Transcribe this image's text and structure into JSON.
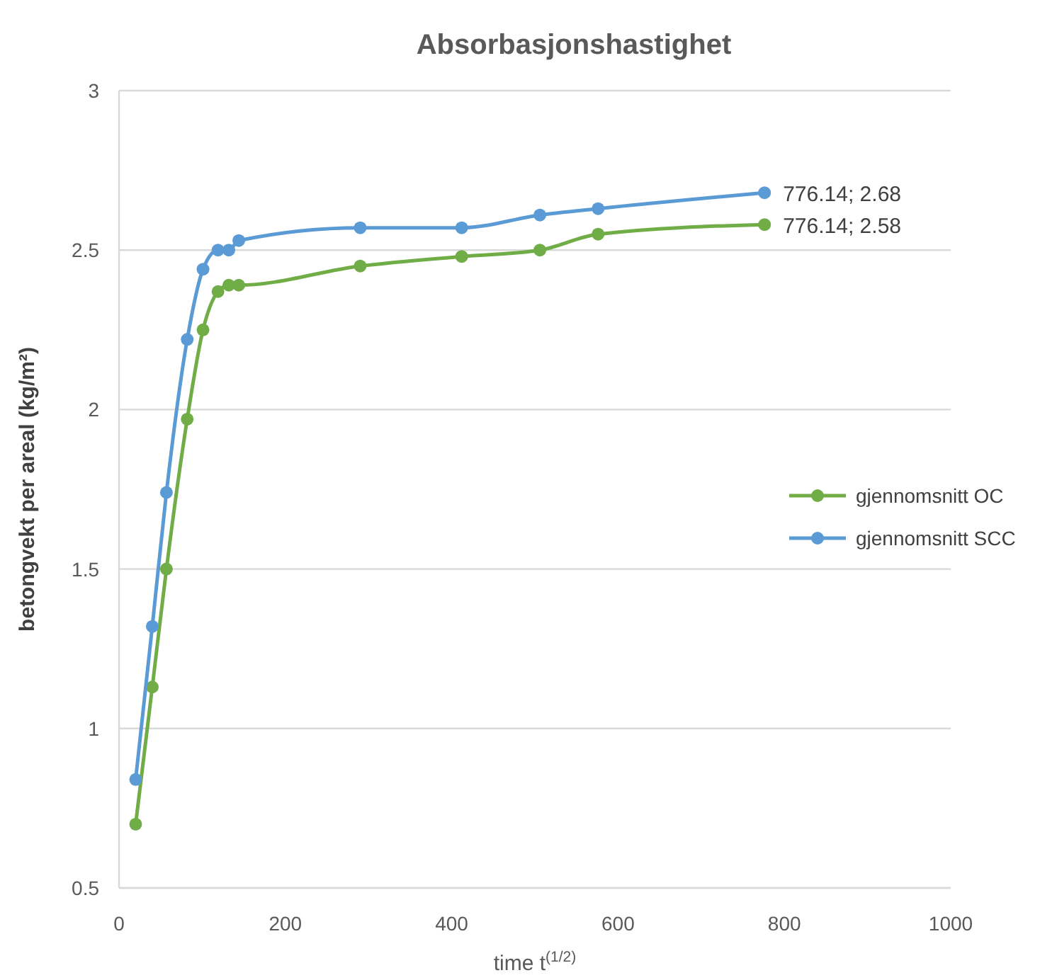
{
  "chart_data": {
    "type": "line",
    "title": "Absorbasjonshastighet",
    "xlabel": "time t$^{(1/2)}$",
    "ylabel": "betongvekt per areal (kg/m²)",
    "x": [
      20,
      40,
      57,
      82,
      101,
      119,
      132,
      144,
      290,
      412,
      506,
      576,
      776.14
    ],
    "series": [
      {
        "name": "gjennomsnitt OC",
        "color": "#70ad47",
        "values": [
          0.7,
          1.13,
          1.5,
          1.97,
          2.25,
          2.37,
          2.39,
          2.39,
          2.45,
          2.48,
          2.5,
          2.55,
          2.58
        ]
      },
      {
        "name": "gjennomsnitt SCC",
        "color": "#5b9bd5",
        "values": [
          0.84,
          1.32,
          1.74,
          2.22,
          2.44,
          2.5,
          2.5,
          2.53,
          2.57,
          2.57,
          2.61,
          2.63,
          2.68
        ]
      }
    ],
    "annotations": [
      {
        "text": "776.14; 2.68",
        "x": 776.14,
        "y": 2.68
      },
      {
        "text": "776.14; 2.58",
        "x": 776.14,
        "y": 2.58
      }
    ],
    "xlim": [
      0,
      1000
    ],
    "xticks": [
      0,
      200,
      400,
      600,
      800,
      1000
    ],
    "ylim": [
      0.5,
      3
    ],
    "yticks": [
      0.5,
      1,
      1.5,
      2,
      2.5,
      3
    ],
    "grid": "y",
    "legend": "right",
    "marker": "circle",
    "line_style": "solid"
  }
}
